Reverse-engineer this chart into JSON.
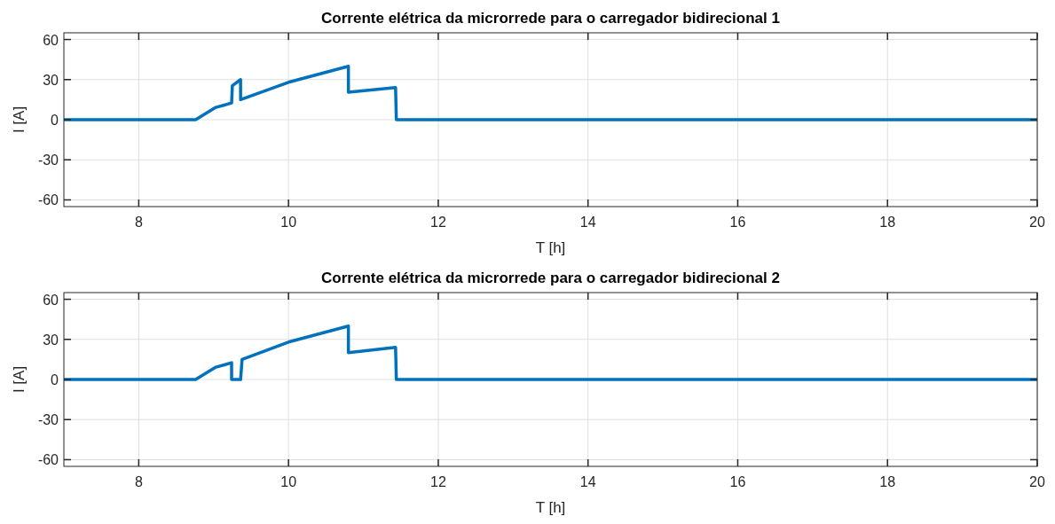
{
  "chart_data": [
    {
      "type": "line",
      "title": "Corrente elétrica da microrrede para o carregador bidirecional 1",
      "xlabel": "T [h]",
      "ylabel": "I [A]",
      "xlim": [
        7,
        20
      ],
      "ylim": [
        -65,
        65
      ],
      "xticks": [
        8,
        10,
        12,
        14,
        16,
        18,
        20
      ],
      "yticks": [
        -60,
        -30,
        0,
        30,
        60
      ],
      "grid": true,
      "series": [
        {
          "color": "#0072bd",
          "x": [
            7,
            8.76,
            9.02,
            9.24,
            9.25,
            9.36,
            9.36,
            10.0,
            10.8,
            10.8,
            11.43,
            11.44,
            20
          ],
          "values": [
            0,
            0,
            9,
            12.5,
            25.5,
            30,
            15,
            28,
            40,
            20.5,
            24,
            0,
            0
          ]
        }
      ]
    },
    {
      "type": "line",
      "title": "Corrente elétrica da microrrede para o carregador bidirecional 2",
      "xlabel": "T [h]",
      "ylabel": "I [A]",
      "xlim": [
        7,
        20
      ],
      "ylim": [
        -65,
        65
      ],
      "xticks": [
        8,
        10,
        12,
        14,
        16,
        18,
        20
      ],
      "yticks": [
        -60,
        -30,
        0,
        30,
        60
      ],
      "grid": true,
      "series": [
        {
          "color": "#0072bd",
          "x": [
            7,
            8.76,
            9.02,
            9.24,
            9.24,
            9.36,
            9.38,
            10.0,
            10.8,
            10.8,
            11.43,
            11.44,
            20
          ],
          "values": [
            0,
            0,
            9,
            12.5,
            0,
            0,
            15,
            28,
            40,
            20,
            24,
            0,
            0
          ]
        }
      ]
    }
  ]
}
